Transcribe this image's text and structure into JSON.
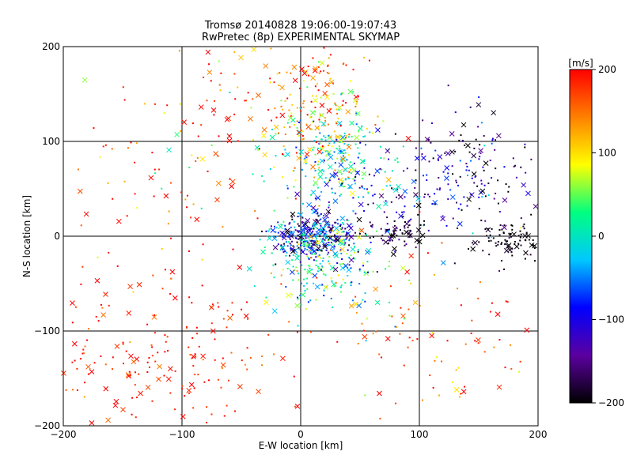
{
  "chart_data": {
    "type": "scatter",
    "title": "Tromsø 20140828 19:06:00-19:07:43",
    "subtitle": "RwPretec (8p) EXPERIMENTAL SKYMAP",
    "xlabel": "E-W location [km]",
    "ylabel": "N-S location [km]",
    "xlim": [
      -200,
      200
    ],
    "ylim": [
      -200,
      200
    ],
    "xticks": [
      "-200",
      "-100",
      "0",
      "100",
      "200"
    ],
    "yticks": [
      "-200",
      "-100",
      "0",
      "100",
      "200"
    ],
    "grid": true,
    "markers": [
      "dot",
      "x"
    ],
    "colorbar": {
      "label": "[m/s]",
      "range": [
        -200,
        200
      ],
      "ticks": [
        "200",
        "100",
        "0",
        "-100",
        "-200"
      ],
      "colors": [
        "#000000",
        "#5b00a0",
        "#0000ff",
        "#00c8ff",
        "#00ff80",
        "#ffff00",
        "#ff8000",
        "#ff0000"
      ]
    },
    "clusters": [
      {
        "x": 10,
        "y": 0,
        "sx": 18,
        "sy": 12,
        "n": 320,
        "vmean": -100,
        "vsd": 70
      },
      {
        "x": 20,
        "y": -30,
        "sx": 22,
        "sy": 25,
        "n": 180,
        "vmean": 10,
        "vsd": 60
      },
      {
        "x": 30,
        "y": 80,
        "sx": 22,
        "sy": 25,
        "n": 220,
        "vmean": 20,
        "vsd": 60
      },
      {
        "x": 10,
        "y": 140,
        "sx": 25,
        "sy": 30,
        "n": 160,
        "vmean": 150,
        "vsd": 60
      },
      {
        "x": 90,
        "y": 40,
        "sx": 35,
        "sy": 30,
        "n": 140,
        "vmean": -110,
        "vsd": 50
      },
      {
        "x": 150,
        "y": 80,
        "sx": 25,
        "sy": 30,
        "n": 110,
        "vmean": -150,
        "vsd": 60
      },
      {
        "x": 175,
        "y": -5,
        "sx": 15,
        "sy": 10,
        "n": 90,
        "vmean": -200,
        "vsd": 20
      },
      {
        "x": 80,
        "y": 5,
        "sx": 12,
        "sy": 8,
        "n": 60,
        "vmean": -180,
        "vsd": 30
      },
      {
        "x": -120,
        "y": -130,
        "sx": 55,
        "sy": 45,
        "n": 200,
        "vmean": 190,
        "vsd": 25
      },
      {
        "x": -130,
        "y": 40,
        "sx": 50,
        "sy": 70,
        "n": 80,
        "vmean": 170,
        "vsd": 50
      },
      {
        "x": -60,
        "y": 100,
        "sx": 45,
        "sy": 50,
        "n": 80,
        "vmean": 130,
        "vsd": 80
      },
      {
        "x": 80,
        "y": -80,
        "sx": 40,
        "sy": 40,
        "n": 60,
        "vmean": 120,
        "vsd": 80
      },
      {
        "x": 130,
        "y": -120,
        "sx": 40,
        "sy": 40,
        "n": 40,
        "vmean": 180,
        "vsd": 40
      }
    ]
  }
}
